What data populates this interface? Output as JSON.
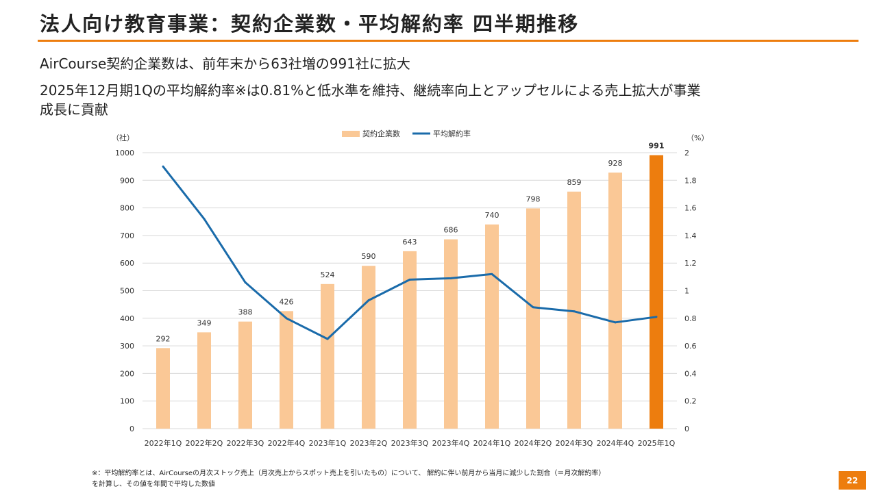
{
  "header": {
    "title": "法人向け教育事業：契約企業数・平均解約率 四半期推移",
    "lines": [
      "AirCourse契約企業数は、前年末から63社増の991社に拡大",
      "2025年12月期1Qの平均解約率※は0.81%と低水準を維持、継続率向上とアップセルによる売上拡大が事業",
      "成長に貢献"
    ]
  },
  "chart_data": {
    "type": "bar+line",
    "categories": [
      "2022年1Q",
      "2022年2Q",
      "2022年3Q",
      "2022年4Q",
      "2023年1Q",
      "2023年2Q",
      "2023年3Q",
      "2023年4Q",
      "2024年1Q",
      "2024年2Q",
      "2024年3Q",
      "2024年4Q",
      "2025年1Q"
    ],
    "series": [
      {
        "name": "契約企業数",
        "kind": "bar",
        "axis": "left",
        "values": [
          292,
          349,
          388,
          426,
          524,
          590,
          643,
          686,
          740,
          798,
          859,
          928,
          991
        ],
        "data_labels": [
          "292",
          "349",
          "388",
          "426",
          "524",
          "590",
          "643",
          "686",
          "740",
          "798",
          "859",
          "928",
          "991"
        ],
        "color": "#FAC896",
        "highlight_color": "#ED7D0E",
        "highlight_index": 12
      },
      {
        "name": "平均解約率",
        "kind": "line",
        "axis": "right",
        "values": [
          1.9,
          1.52,
          1.06,
          0.8,
          0.65,
          0.93,
          1.08,
          1.09,
          1.12,
          0.88,
          0.85,
          0.77,
          0.81
        ],
        "color": "#1A6BAA"
      }
    ],
    "left_axis": {
      "unit_label": "（社）",
      "ylim": [
        0,
        1000
      ],
      "ticks": [
        0,
        100,
        200,
        300,
        400,
        500,
        600,
        700,
        800,
        900,
        1000
      ]
    },
    "right_axis": {
      "unit_label": "（%）",
      "ylim": [
        0,
        2
      ],
      "ticks": [
        "0",
        "0.2",
        "0.4",
        "0.6",
        "0.8",
        "1",
        "1.2",
        "1.4",
        "1.6",
        "1.8",
        "2"
      ]
    },
    "grid": true,
    "legend_position": "top-center"
  },
  "footnote": {
    "lines": [
      "※：平均解約率とは、AirCourseの月次ストック売上（月次売上からスポット売上を引いたもの）について、 解約に伴い前月から当月に減少した割合（＝月次解約率）",
      "を計算し、その値を年間で平均した数値"
    ]
  },
  "page_number": "22",
  "colors": {
    "accent": "#ED7D0E",
    "bar": "#FAC896",
    "line": "#1A6BAA",
    "grid": "#D9D9D9"
  }
}
